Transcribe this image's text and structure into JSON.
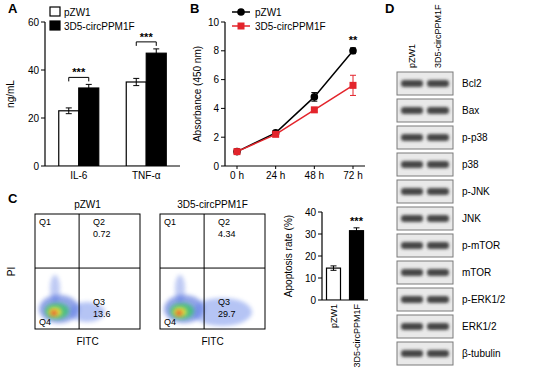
{
  "panel_labels": [
    "A",
    "B",
    "C",
    "D"
  ],
  "chart_data": [
    {
      "type": "bar",
      "ylabel": "ng/mL",
      "categories": [
        "IL-6",
        "TNF-α"
      ],
      "series": [
        {
          "name": "pZW1",
          "color": "#ffffff",
          "values": [
            23,
            35
          ],
          "errors": [
            1.2,
            1.5
          ]
        },
        {
          "name": "3D5-circPPM1F",
          "color": "#000000",
          "values": [
            32.5,
            47
          ],
          "errors": [
            1.5,
            1.8
          ]
        }
      ],
      "ylim": [
        0,
        60
      ],
      "yticks": [
        0,
        20,
        40,
        60
      ],
      "legend": "top-left",
      "annotations": [
        "***",
        "***"
      ]
    },
    {
      "type": "line",
      "ylabel": "Absorbance (450 nm)",
      "categories": [
        "0 h",
        "24 h",
        "48 h",
        "72 h"
      ],
      "series": [
        {
          "name": "pZW1",
          "color": "#000000",
          "marker": "circle",
          "line_style": "solid",
          "values": [
            1,
            2.3,
            4.8,
            8
          ],
          "errors": [
            0.05,
            0.15,
            0.3,
            0.2
          ]
        },
        {
          "name": "3D5-circPPM1F",
          "color": "#e3242b",
          "marker": "square",
          "line_style": "solid",
          "values": [
            1,
            2.2,
            3.9,
            5.6
          ],
          "errors": [
            0.05,
            0.1,
            0.15,
            0.7
          ]
        }
      ],
      "ylim": [
        0,
        10
      ],
      "yticks": [
        0,
        2,
        4,
        6,
        8,
        10
      ],
      "legend": "top-left",
      "annotations": [
        null,
        null,
        null,
        "**"
      ]
    },
    {
      "type": "bar",
      "ylabel": "Apoptosis rate (%)",
      "categories": [
        "pZW1",
        "3D5-circPPM1F"
      ],
      "values": [
        14.5,
        31.5
      ],
      "errors": [
        1,
        1.3
      ],
      "colors": [
        "#ffffff",
        "#000000"
      ],
      "ylim": [
        0,
        40
      ],
      "yticks": [
        0,
        10,
        20,
        30,
        40
      ],
      "annotation": "***"
    }
  ],
  "flow": {
    "x_label": "FITC",
    "y_label": "PI",
    "plots": [
      {
        "title": "pZW1",
        "quadrants": [
          "Q1",
          "Q2",
          "Q3",
          "Q4"
        ],
        "Q2": 0.72,
        "Q3": 13.6
      },
      {
        "title": "3D5-circPPM1F",
        "quadrants": [
          "Q1",
          "Q2",
          "Q3",
          "Q4"
        ],
        "Q2": 4.34,
        "Q3": 29.7
      }
    ]
  },
  "blot": {
    "columns": [
      "pZW1",
      "3D5-circPPM1F"
    ],
    "rows": [
      "Bcl2",
      "Bax",
      "p-p38",
      "p38",
      "p-JNK",
      "JNK",
      "p-mTOR",
      "mTOR",
      "p-ERK1/2",
      "ERK1/2",
      "β-tubulin"
    ]
  }
}
